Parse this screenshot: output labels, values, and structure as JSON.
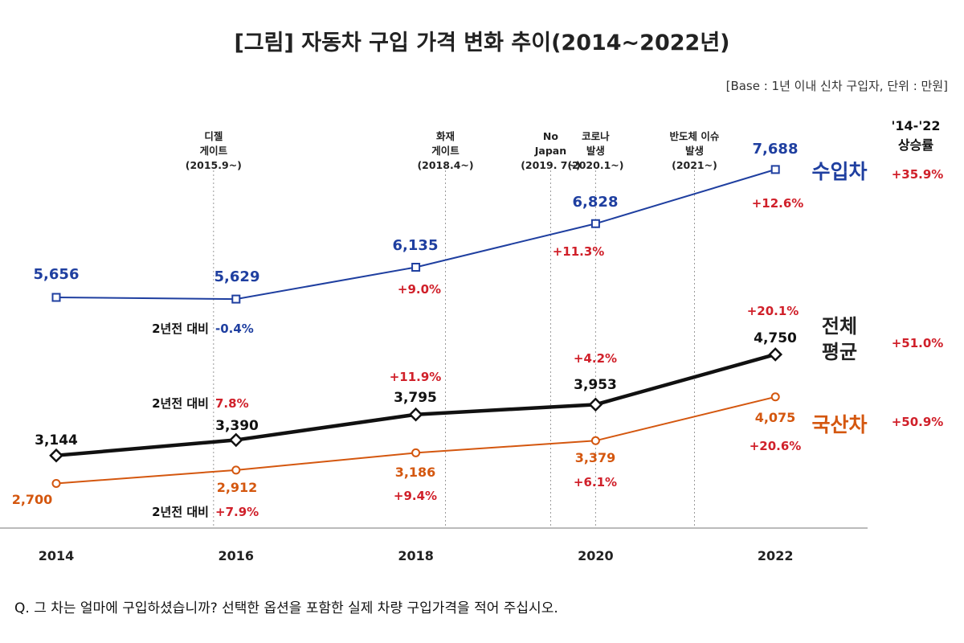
{
  "chart_data": {
    "type": "line",
    "title": "[그림] 자동차 구입 가격 변화 추이(2014~2022년)",
    "subtitle": "[Base : 1년 이내 신차 구입자, 단위 : 만원]",
    "x": [
      2014,
      2016,
      2018,
      2020,
      2022
    ],
    "tick_labels": [
      "2014",
      "2016",
      "2018",
      "2020",
      "2022"
    ],
    "series": [
      {
        "name": "수입차",
        "color": "#1f3fa0",
        "values": [
          5656,
          5629,
          6135,
          6828,
          7688
        ],
        "value_labels": [
          "5,656",
          "5,629",
          "6,135",
          "6,828",
          "7,688"
        ],
        "change_labels": [
          "-0.4%",
          "+9.0%",
          "+11.3%",
          "+12.6%"
        ],
        "total_growth": "+35.9%"
      },
      {
        "name": "전체 평균",
        "color": "#111111",
        "values": [
          3144,
          3390,
          3795,
          3953,
          4750
        ],
        "value_labels": [
          "3,144",
          "3,390",
          "3,795",
          "3,953",
          "4,750"
        ],
        "change_labels": [
          "7.8%",
          "+11.9%",
          "+4.2%",
          "+20.1%"
        ],
        "total_growth": "+51.0%"
      },
      {
        "name": "국산차",
        "color": "#d4570f",
        "values": [
          2700,
          2912,
          3186,
          3379,
          4075
        ],
        "value_labels": [
          "2,700",
          "2,912",
          "3,186",
          "3,379",
          "4,075"
        ],
        "change_labels": [
          "+7.9%",
          "+9.4%",
          "+6.1%",
          "+20.6%"
        ],
        "total_growth": "+50.9%"
      }
    ],
    "change_prefix": "2년전 대비",
    "growth_header": [
      "'14-'22",
      "상승률"
    ],
    "events": [
      {
        "lines": [
          "디젤",
          "게이트",
          "(2015.9~)"
        ],
        "at": 2015.75
      },
      {
        "lines": [
          "화재",
          "게이트",
          "(2018.4~)"
        ],
        "at": 2018.33
      },
      {
        "lines": [
          "No",
          "Japan",
          "(2019. 7~)"
        ],
        "at": 2019.5
      },
      {
        "lines": [
          "코로나",
          "발생",
          "(2020.1~)"
        ],
        "at": 2020.0
      },
      {
        "lines": [
          "반도체 이슈",
          "발생",
          "(2021~)"
        ],
        "at": 2021.1
      }
    ],
    "colors": {
      "change": "#d0202a"
    }
  },
  "footnote": "Q. 그 차는 얼마에 구입하셨습니까? 선택한 옵션을 포함한 실제 차량 구입가격을 적어 주십시오."
}
